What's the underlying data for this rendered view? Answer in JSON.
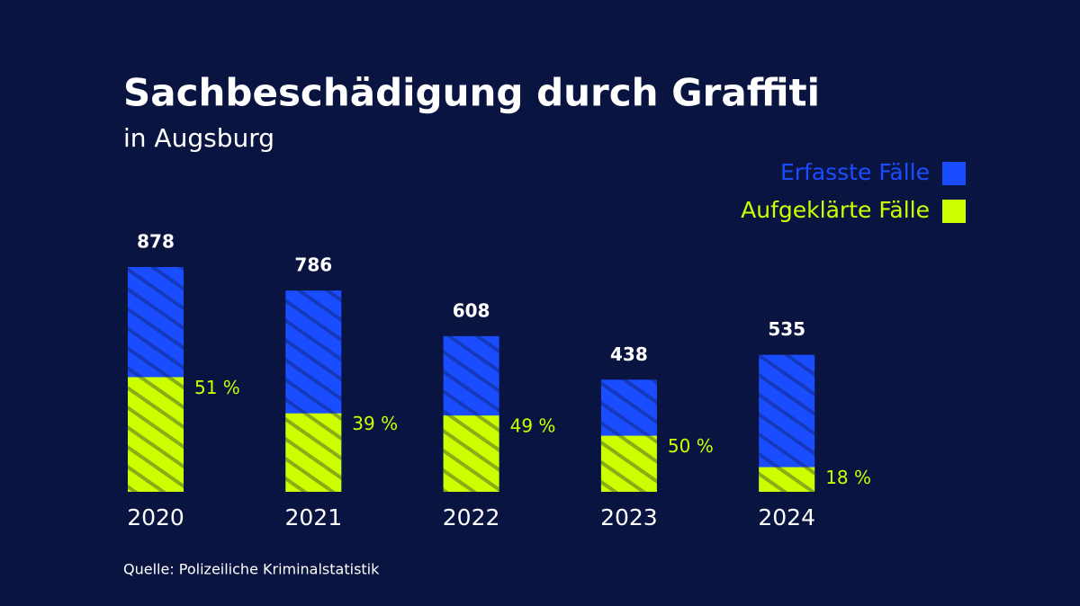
{
  "chart_data": {
    "type": "bar",
    "title": "Sachbeschädigung durch Graffiti",
    "subtitle": "in Augsburg",
    "categories": [
      "2020",
      "2021",
      "2022",
      "2023",
      "2024"
    ],
    "series": [
      {
        "name": "Erfasste Fälle",
        "color": "#1a4dff",
        "values": [
          878,
          786,
          608,
          438,
          535
        ]
      },
      {
        "name": "Aufgeklärte Fälle",
        "color": "#ccff00",
        "values": [
          51,
          39,
          49,
          50,
          18
        ],
        "value_labels": [
          "51 %",
          "39 %",
          "49 %",
          "50 %",
          "18 %"
        ]
      }
    ],
    "source": "Quelle: Polizeiliche Kriminalstatistik"
  }
}
